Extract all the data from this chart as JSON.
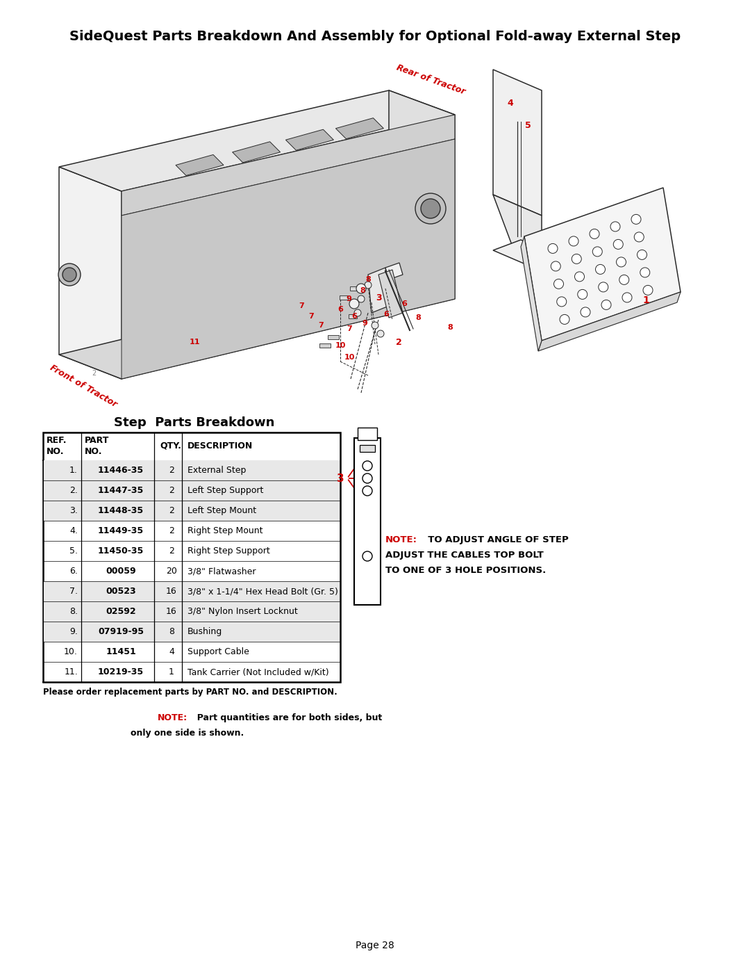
{
  "title": "SideQuest Parts Breakdown And Assembly for Optional Fold-away External Step",
  "table_title": "Step  Parts Breakdown",
  "page_number": "Page 28",
  "bg": "#ffffff",
  "red": "#cc0000",
  "black": "#000000",
  "gray_line": "#555555",
  "shade": "#e8e8e8",
  "table_data": [
    [
      "1.",
      "11446-35",
      "2",
      "External Step"
    ],
    [
      "2.",
      "11447-35",
      "2",
      "Left Step Support"
    ],
    [
      "3.",
      "11448-35",
      "2",
      "Left Step Mount"
    ],
    [
      "4.",
      "11449-35",
      "2",
      "Right Step Mount"
    ],
    [
      "5.",
      "11450-35",
      "2",
      "Right Step Support"
    ],
    [
      "6.",
      "00059",
      "20",
      "3/8\" Flatwasher"
    ],
    [
      "7.",
      "00523",
      "16",
      "3/8\" x 1-1/4\" Hex Head Bolt (Gr. 5)"
    ],
    [
      "8.",
      "02592",
      "16",
      "3/8\" Nylon Insert Locknut"
    ],
    [
      "9.",
      "07919-95",
      "8",
      "Bushing"
    ],
    [
      "10.",
      "11451",
      "4",
      "Support Cable"
    ],
    [
      "11.",
      "10219-35",
      "1",
      "Tank Carrier (Not Included w/Kit)"
    ]
  ],
  "shaded_rows": [
    0,
    1,
    2,
    6,
    7,
    8
  ],
  "footer": "Please order replacement parts by PART NO. and DESCRIPTION.",
  "note_bottom": "NOTE:  Part quantities are for both sides, but\nonly one side is shown.",
  "note_right_1": "NOTE:",
  "note_right_2": "  TO ADJUST ANGLE OF STEP",
  "note_right_3": "ADJUST THE CABLES TOP BOLT",
  "note_right_4": "TO ONE OF 3 HOLE POSITIONS."
}
